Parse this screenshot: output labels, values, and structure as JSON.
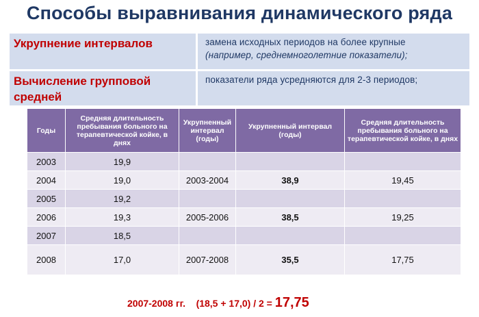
{
  "title": "Способы выравнивания динамического ряда",
  "methods": [
    {
      "name": "Укрупнение интервалов",
      "desc_line1": "замена исходных периодов на более крупные",
      "desc_line2": "(например,    среднемноголетние показатели);"
    },
    {
      "name": "Вычисление групповой средней",
      "desc_line1": "показатели ряда усредняются для 2-3 периодов;"
    }
  ],
  "table": {
    "headers": [
      "Годы",
      "Средняя длительность пребывания больного на терапевтической койке, в днях",
      "Укрупненный интервал (годы)",
      "Укрупненный интервал (годы)",
      "Средняя длительность пребывания больного на терапевтической койке, в днях"
    ],
    "rows": [
      {
        "year": "2003",
        "days": "19,9",
        "interval": "",
        "sum": "",
        "avg": ""
      },
      {
        "year": "2004",
        "days": "19,0",
        "interval": "2003-2004",
        "sum": "38,9",
        "avg": "19,45"
      },
      {
        "year": "2005",
        "days": "19,2",
        "interval": "",
        "sum": "",
        "avg": ""
      },
      {
        "year": "2006",
        "days": "19,3",
        "interval": "2005-2006",
        "sum": "38,5",
        "avg": "19,25"
      },
      {
        "year": "2007",
        "days": "18,5",
        "interval": "",
        "sum": "",
        "avg": ""
      },
      {
        "year": "2008",
        "days": "17,0",
        "interval": "2007-2008",
        "sum": "35,5",
        "avg": "17,75"
      }
    ]
  },
  "formula": {
    "label": "2007-2008 гг.",
    "expr": "(18,5 + 17,0) / 2 =",
    "result": "17,75"
  },
  "colors": {
    "title": "#1f3864",
    "accent_red": "#c00000",
    "header_purple": "#7f6aa4",
    "method_bg": "#d3dced"
  }
}
